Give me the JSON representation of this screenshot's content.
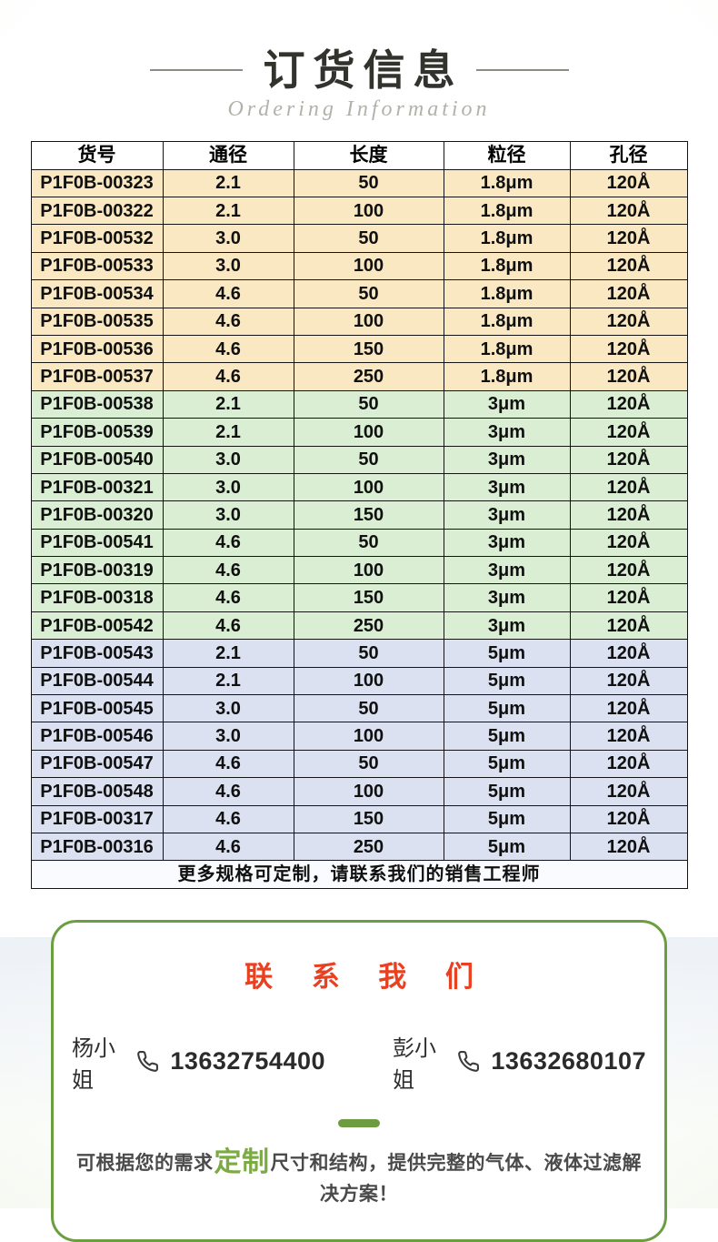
{
  "page": {
    "title": "订货信息",
    "subtitle": "Ordering Information"
  },
  "table": {
    "headers": [
      "货号",
      "通径",
      "长度",
      "粒径",
      "孔径"
    ],
    "group_colors": {
      "yellow": "#f9e8c1",
      "green": "#daeed3",
      "blue": "#dbe1f1"
    },
    "rows": [
      [
        "P1F0B-00323",
        "2.1",
        "50",
        "1.8μm",
        "120Å",
        "yellow"
      ],
      [
        "P1F0B-00322",
        "2.1",
        "100",
        "1.8μm",
        "120Å",
        "yellow"
      ],
      [
        "P1F0B-00532",
        "3.0",
        "50",
        "1.8μm",
        "120Å",
        "yellow"
      ],
      [
        "P1F0B-00533",
        "3.0",
        "100",
        "1.8μm",
        "120Å",
        "yellow"
      ],
      [
        "P1F0B-00534",
        "4.6",
        "50",
        "1.8μm",
        "120Å",
        "yellow"
      ],
      [
        "P1F0B-00535",
        "4.6",
        "100",
        "1.8μm",
        "120Å",
        "yellow"
      ],
      [
        "P1F0B-00536",
        "4.6",
        "150",
        "1.8μm",
        "120Å",
        "yellow"
      ],
      [
        "P1F0B-00537",
        "4.6",
        "250",
        "1.8μm",
        "120Å",
        "yellow"
      ],
      [
        "P1F0B-00538",
        "2.1",
        "50",
        "3μm",
        "120Å",
        "green"
      ],
      [
        "P1F0B-00539",
        "2.1",
        "100",
        "3μm",
        "120Å",
        "green"
      ],
      [
        "P1F0B-00540",
        "3.0",
        "50",
        "3μm",
        "120Å",
        "green"
      ],
      [
        "P1F0B-00321",
        "3.0",
        "100",
        "3μm",
        "120Å",
        "green"
      ],
      [
        "P1F0B-00320",
        "3.0",
        "150",
        "3μm",
        "120Å",
        "green"
      ],
      [
        "P1F0B-00541",
        "4.6",
        "50",
        "3μm",
        "120Å",
        "green"
      ],
      [
        "P1F0B-00319",
        "4.6",
        "100",
        "3μm",
        "120Å",
        "green"
      ],
      [
        "P1F0B-00318",
        "4.6",
        "150",
        "3μm",
        "120Å",
        "green"
      ],
      [
        "P1F0B-00542",
        "4.6",
        "250",
        "3μm",
        "120Å",
        "green"
      ],
      [
        "P1F0B-00543",
        "2.1",
        "50",
        "5μm",
        "120Å",
        "blue"
      ],
      [
        "P1F0B-00544",
        "2.1",
        "100",
        "5μm",
        "120Å",
        "blue"
      ],
      [
        "P1F0B-00545",
        "3.0",
        "50",
        "5μm",
        "120Å",
        "blue"
      ],
      [
        "P1F0B-00546",
        "3.0",
        "100",
        "5μm",
        "120Å",
        "blue"
      ],
      [
        "P1F0B-00547",
        "4.6",
        "50",
        "5μm",
        "120Å",
        "blue"
      ],
      [
        "P1F0B-00548",
        "4.6",
        "100",
        "5μm",
        "120Å",
        "blue"
      ],
      [
        "P1F0B-00317",
        "4.6",
        "150",
        "5μm",
        "120Å",
        "blue"
      ],
      [
        "P1F0B-00316",
        "4.6",
        "250",
        "5μm",
        "120Å",
        "blue"
      ]
    ],
    "footer_note": "更多规格可定制，请联系我们的销售工程师"
  },
  "contact": {
    "title": "联 系 我 们",
    "title_color": "#e84020",
    "contacts": [
      {
        "name": "杨小姐",
        "phone": "13632754400"
      },
      {
        "name": "彭小姐",
        "phone": "13632680107"
      }
    ],
    "note_prefix": "可根据您的需求",
    "note_highlight": "定制",
    "note_suffix": "尺寸和结构，提供完整的气体、液体过滤解决方案！",
    "border_color": "#6a9e41",
    "highlight_color": "#7caa45"
  }
}
